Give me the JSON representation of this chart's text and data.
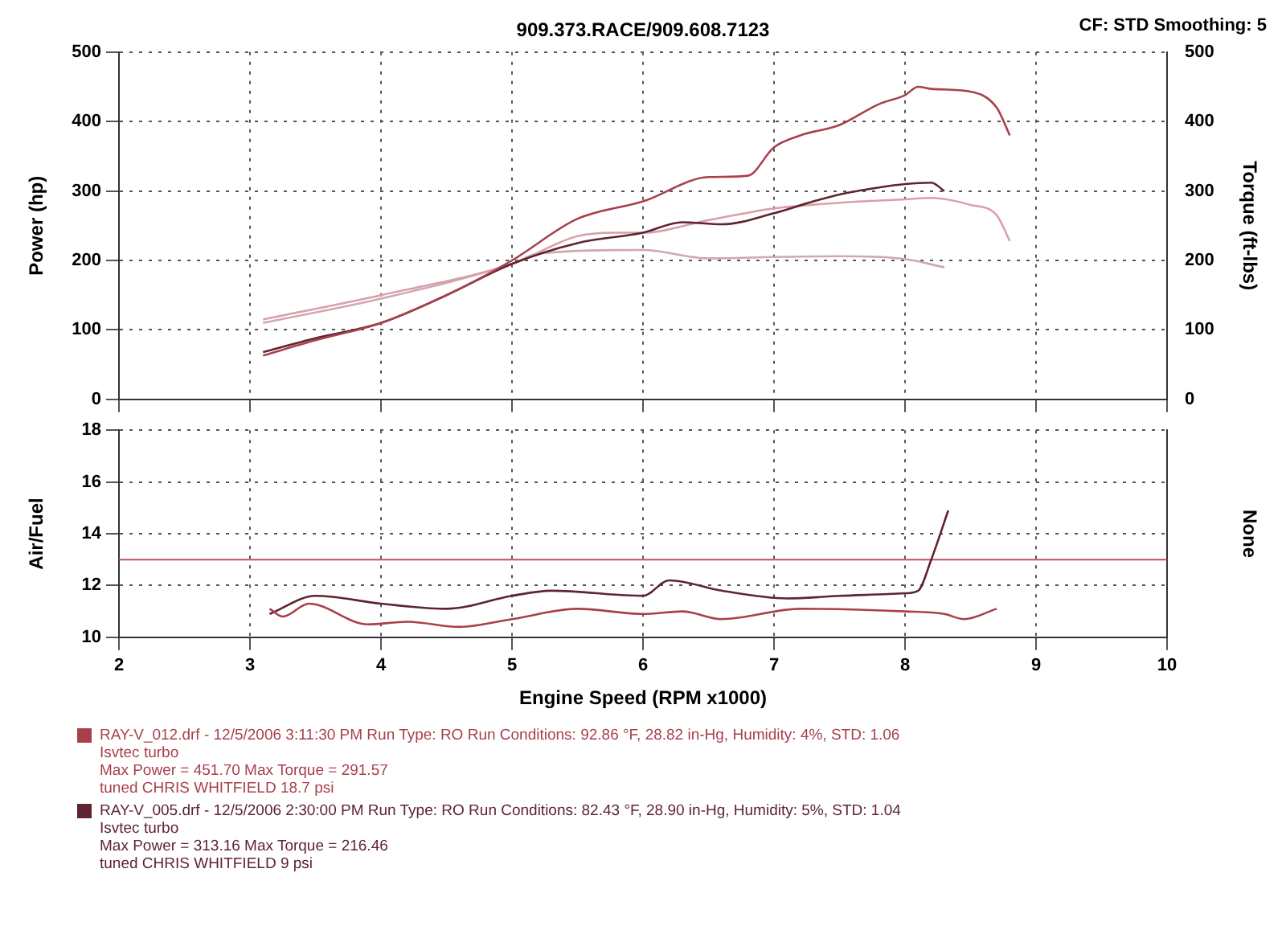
{
  "chart_data": [
    {
      "type": "line",
      "subtitle": "909.373.RACE/909.608.7123",
      "annotations": [
        "CF: STD  Smoothing: 5"
      ],
      "ylabel": "Power (hp)",
      "y2label": "Torque (ft-lbs)",
      "xlim": [
        2,
        10
      ],
      "xticks": [
        2,
        3,
        4,
        5,
        6,
        7,
        8,
        9,
        10
      ],
      "ylim": [
        0,
        500
      ],
      "yticks": [
        0,
        100,
        200,
        300,
        400,
        500
      ],
      "y2lim": [
        0,
        500
      ],
      "y2ticks": [
        0,
        100,
        200,
        300,
        400,
        500
      ],
      "tick_labels": "y",
      "grid": true,
      "marker": "none",
      "line_style": "solid",
      "series": [
        {
          "color": "#a8404c",
          "x": [
            3.1,
            3.5,
            4,
            4.5,
            5,
            5.5,
            6,
            6.5,
            6.8,
            7,
            7.2,
            7.5,
            7.8,
            8,
            8.1,
            8.2,
            8.5,
            8.7,
            8.8
          ],
          "values": [
            63,
            85,
            110,
            150,
            200,
            260,
            285,
            320,
            322,
            363,
            380,
            395,
            425,
            438,
            450,
            447,
            443,
            420,
            380
          ]
        },
        {
          "color": "#5e2430",
          "x": [
            3.1,
            3.5,
            4,
            4.5,
            5,
            5.5,
            6,
            6.3,
            6.6,
            7,
            7.3,
            7.5,
            7.8,
            8,
            8.2,
            8.3
          ],
          "values": [
            68,
            88,
            110,
            150,
            195,
            225,
            240,
            255,
            252,
            268,
            285,
            295,
            305,
            310,
            312,
            300
          ]
        },
        {
          "color": "#d8a0a8",
          "x": [
            3.1,
            4,
            5,
            5.5,
            5.8,
            6,
            6.5,
            7,
            7.5,
            8,
            8.2,
            8.5,
            8.7,
            8.8
          ],
          "values": [
            115,
            150,
            195,
            235,
            240,
            240,
            258,
            275,
            283,
            288,
            290,
            280,
            265,
            228
          ]
        },
        {
          "color": "#cfa8b0",
          "x": [
            3.1,
            4,
            5,
            5.2,
            6,
            6.5,
            7,
            7.5,
            8,
            8.3
          ],
          "values": [
            110,
            145,
            195,
            210,
            215,
            203,
            205,
            206,
            202,
            190
          ]
        }
      ]
    },
    {
      "type": "line",
      "xlabel": "Engine Speed (RPM x1000)",
      "ylabel": "Air/Fuel",
      "y2label": "None",
      "xlim": [
        2,
        10
      ],
      "xticks": [
        2,
        3,
        4,
        5,
        6,
        7,
        8,
        9,
        10
      ],
      "ylim": [
        10,
        18
      ],
      "yticks": [
        10,
        12,
        14,
        16,
        18
      ],
      "grid": true,
      "marker": "none",
      "line_style": "solid",
      "legend": "bottom left",
      "ref_lines": [
        {
          "axis": "y",
          "value": 13,
          "color": "#c05060"
        }
      ],
      "series": [
        {
          "name": "RAY-V_012.drf - 12/5/2006 3:11:30 PM  Run Type: RO  Run Conditions: 92.86 °F, 28.82 in-Hg,  Humidity:  4%, STD: 1.06\nIsvtec turbo\nMax Power = 451.70  Max Torque = 291.57\ntuned  CHRIS WHITFIELD  18.7 psi",
          "color": "#a8404c",
          "x": [
            3.15,
            3.25,
            3.45,
            3.9,
            4.2,
            4.6,
            5,
            5.5,
            6,
            6.3,
            6.6,
            7.2,
            8,
            8.3,
            8.45,
            8.7
          ],
          "values": [
            11.1,
            10.8,
            11.3,
            10.5,
            10.6,
            10.4,
            10.7,
            11.1,
            10.9,
            11.0,
            10.7,
            11.1,
            11.0,
            10.9,
            10.7,
            11.1
          ]
        },
        {
          "name": "RAY-V_005.drf - 12/5/2006 2:30:00 PM  Run Type: RO  Run Conditions: 82.43 °F, 28.90 in-Hg,  Humidity:  5%, STD: 1.04\nIsvtec turbo\nMax Power = 313.16  Max Torque = 216.46\ntuned  CHRIS WHITFIELD  9 psi",
          "color": "#5e2430",
          "x": [
            3.15,
            3.5,
            4,
            4.5,
            5,
            5.3,
            6,
            6.2,
            6.6,
            7.1,
            7.5,
            8,
            8.1,
            8.2,
            8.33
          ],
          "values": [
            10.9,
            11.6,
            11.3,
            11.1,
            11.6,
            11.8,
            11.6,
            12.2,
            11.8,
            11.5,
            11.6,
            11.7,
            11.8,
            13,
            14.9
          ]
        }
      ]
    }
  ]
}
